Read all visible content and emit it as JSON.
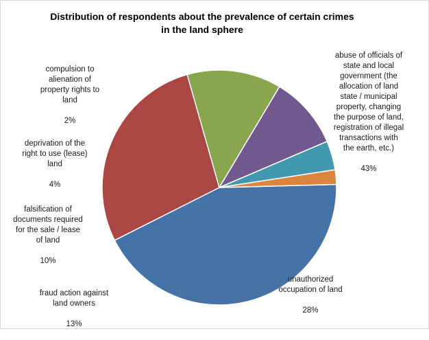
{
  "chart_data": {
    "type": "pie",
    "title": "Distribution of respondents about the prevalence of certain crimes\nin the land sphere",
    "slices": [
      {
        "label": "abuse of officials of\nstate and local\ngovernment (the\nallocation of land\nstate / municipal\nproperty, changing\nthe purpose of land,\nregistration of illegal\ntransactions with\nthe earth, etc.)",
        "value": 43,
        "value_label": "43%",
        "color": "#4572a7"
      },
      {
        "label": "unauthorized\noccupation of land",
        "value": 28,
        "value_label": "28%",
        "color": "#aa4643"
      },
      {
        "label": "fraud action against\nland owners",
        "value": 13,
        "value_label": "13%",
        "color": "#89a54e"
      },
      {
        "label": "falsification of\ndocuments required\nfor the sale / lease\nof land",
        "value": 10,
        "value_label": "10%",
        "color": "#71588f"
      },
      {
        "label": "deprivation of the\nright to use (lease)\nland",
        "value": 4,
        "value_label": "4%",
        "color": "#4198af"
      },
      {
        "label": "compulsion to\nalienation of\nproperty rights to\nland",
        "value": 2,
        "value_label": "2%",
        "color": "#db843d"
      }
    ]
  }
}
